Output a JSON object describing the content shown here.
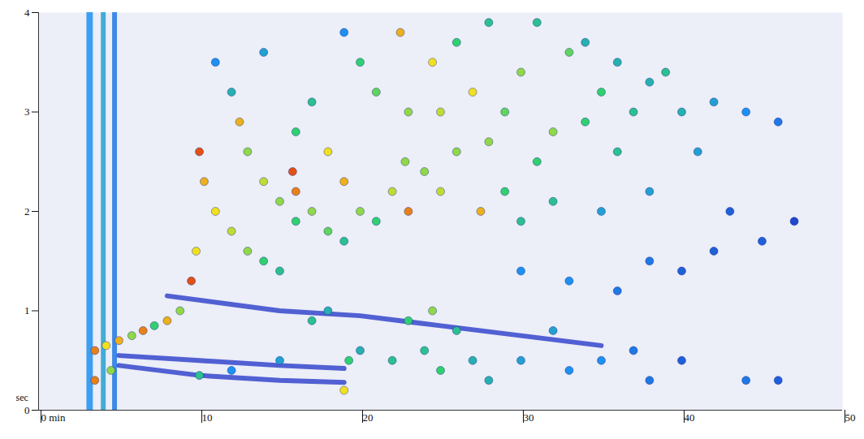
{
  "chart_data": {
    "type": "heatmap",
    "y_label": "sec",
    "xlim": [
      0,
      50
    ],
    "xticks": [
      {
        "value": 0,
        "label": "0 min"
      },
      10,
      20,
      30,
      40,
      50
    ],
    "ylim": [
      0,
      4
    ],
    "yticks": [
      0,
      1,
      2,
      3,
      4
    ],
    "zlim": [
      0,
      100
    ],
    "streaks": [
      [
        3.0,
        3.4,
        0,
        4,
        40
      ],
      [
        3.9,
        4.2,
        0,
        4,
        45
      ],
      [
        4.6,
        4.9,
        0,
        4,
        35
      ]
    ],
    "bands": [
      {
        "color": "#2a3cc8",
        "x": [
          8,
          15,
          20,
          25,
          30,
          35
        ],
        "y": [
          1.15,
          1.0,
          0.95,
          0.85,
          0.75,
          0.65
        ]
      },
      {
        "color": "#2a3cc8",
        "x": [
          5,
          10,
          15,
          19
        ],
        "y": [
          0.55,
          0.5,
          0.45,
          0.42
        ]
      },
      {
        "color": "#2a3cc8",
        "x": [
          5,
          10,
          15,
          19
        ],
        "y": [
          0.45,
          0.35,
          0.3,
          0.28
        ]
      }
    ],
    "peaks": [
      [
        3.5,
        0.6,
        90
      ],
      [
        4.2,
        0.65,
        80
      ],
      [
        5,
        0.7,
        85
      ],
      [
        5.8,
        0.75,
        70
      ],
      [
        6.5,
        0.8,
        90
      ],
      [
        7.2,
        0.85,
        60
      ],
      [
        8,
        0.9,
        85
      ],
      [
        8.8,
        1.0,
        70
      ],
      [
        9.5,
        1.3,
        95
      ],
      [
        9.8,
        1.6,
        80
      ],
      [
        10,
        2.6,
        95
      ],
      [
        10.3,
        2.3,
        85
      ],
      [
        11,
        2.0,
        80
      ],
      [
        12,
        1.8,
        75
      ],
      [
        13,
        1.6,
        70
      ],
      [
        14,
        1.5,
        60
      ],
      [
        15,
        1.4,
        55
      ],
      [
        12.5,
        2.9,
        85
      ],
      [
        13,
        2.6,
        70
      ],
      [
        14,
        2.3,
        75
      ],
      [
        15,
        2.1,
        70
      ],
      [
        16,
        1.9,
        60
      ],
      [
        15.8,
        2.4,
        95
      ],
      [
        16,
        2.2,
        90
      ],
      [
        17,
        2.0,
        70
      ],
      [
        18,
        1.8,
        65
      ],
      [
        19,
        1.7,
        55
      ],
      [
        18,
        2.6,
        80
      ],
      [
        19,
        2.3,
        85
      ],
      [
        20,
        2.0,
        70
      ],
      [
        21,
        1.9,
        60
      ],
      [
        22,
        2.2,
        75
      ],
      [
        22.5,
        3.8,
        85
      ],
      [
        22.8,
        2.5,
        70
      ],
      [
        23,
        2.0,
        90
      ],
      [
        24,
        2.4,
        70
      ],
      [
        24.5,
        3.5,
        80
      ],
      [
        25,
        3.0,
        75
      ],
      [
        26,
        2.6,
        70
      ],
      [
        27,
        3.2,
        80
      ],
      [
        27.5,
        2.0,
        85
      ],
      [
        28,
        2.7,
        70
      ],
      [
        29,
        3.0,
        65
      ],
      [
        30,
        3.4,
        70
      ],
      [
        31,
        2.5,
        60
      ],
      [
        32,
        2.8,
        70
      ],
      [
        33,
        3.6,
        65
      ],
      [
        34,
        2.9,
        60
      ],
      [
        35,
        3.2,
        60
      ],
      [
        36,
        2.6,
        55
      ],
      [
        37,
        3.0,
        55
      ],
      [
        38,
        3.3,
        50
      ],
      [
        39,
        3.4,
        55
      ],
      [
        40,
        3.0,
        50
      ],
      [
        41,
        2.6,
        45
      ],
      [
        42,
        3.1,
        45
      ],
      [
        44,
        3.0,
        40
      ],
      [
        46,
        2.9,
        35
      ],
      [
        20,
        3.5,
        60
      ],
      [
        21,
        3.2,
        65
      ],
      [
        23,
        3.0,
        70
      ],
      [
        26,
        3.7,
        60
      ],
      [
        28,
        3.9,
        55
      ],
      [
        31,
        3.9,
        55
      ],
      [
        34,
        3.7,
        50
      ],
      [
        36,
        3.5,
        50
      ],
      [
        25,
        2.2,
        75
      ],
      [
        29,
        2.2,
        60
      ],
      [
        30,
        1.9,
        55
      ],
      [
        32,
        2.1,
        55
      ],
      [
        35,
        2.0,
        45
      ],
      [
        38,
        2.2,
        45
      ],
      [
        17,
        3.1,
        55
      ],
      [
        16,
        2.8,
        60
      ],
      [
        12,
        3.2,
        50
      ],
      [
        11,
        3.5,
        40
      ],
      [
        14,
        3.6,
        45
      ],
      [
        19,
        3.8,
        40
      ],
      [
        19,
        0.2,
        80
      ],
      [
        19.3,
        0.5,
        60
      ],
      [
        20,
        0.6,
        50
      ],
      [
        22,
        0.5,
        55
      ],
      [
        23,
        0.9,
        60
      ],
      [
        24.5,
        1.0,
        70
      ],
      [
        24,
        0.6,
        55
      ],
      [
        25,
        0.4,
        60
      ],
      [
        26,
        0.8,
        55
      ],
      [
        27,
        0.5,
        50
      ],
      [
        28,
        0.3,
        50
      ],
      [
        30,
        0.5,
        45
      ],
      [
        32,
        0.8,
        45
      ],
      [
        33,
        0.4,
        40
      ],
      [
        35,
        0.5,
        40
      ],
      [
        37,
        0.6,
        35
      ],
      [
        38,
        0.3,
        35
      ],
      [
        40,
        0.5,
        30
      ],
      [
        44,
        0.3,
        35
      ],
      [
        46,
        0.3,
        30
      ],
      [
        10,
        0.35,
        55
      ],
      [
        12,
        0.4,
        40
      ],
      [
        15,
        0.5,
        45
      ],
      [
        17,
        0.9,
        55
      ],
      [
        18,
        1.0,
        50
      ],
      [
        30,
        1.4,
        40
      ],
      [
        33,
        1.3,
        40
      ],
      [
        36,
        1.2,
        35
      ],
      [
        38,
        1.5,
        35
      ],
      [
        40,
        1.4,
        30
      ],
      [
        42,
        1.6,
        30
      ],
      [
        45,
        1.7,
        30
      ],
      [
        47,
        1.9,
        25
      ],
      [
        43,
        2.0,
        30
      ],
      [
        3.5,
        0.3,
        90
      ],
      [
        4.5,
        0.4,
        70
      ]
    ]
  }
}
